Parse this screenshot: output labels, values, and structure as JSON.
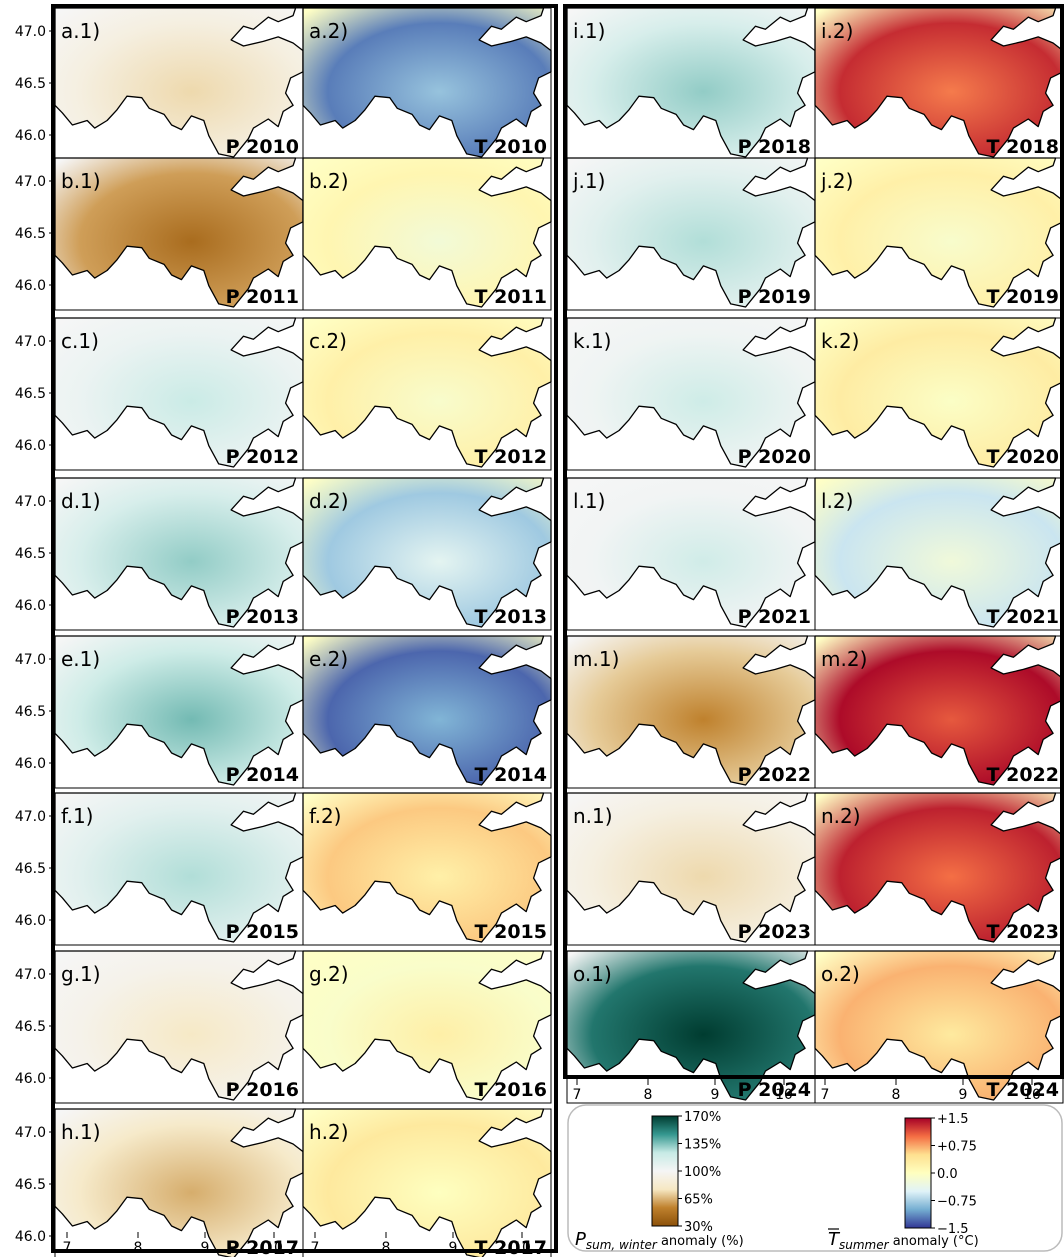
{
  "chart_data": {
    "type": "heatmap",
    "title": "",
    "xlabel": "",
    "ylabel": "",
    "x_ticks": [
      "7",
      "8",
      "9",
      "10"
    ],
    "y_ticks": [
      "47.0",
      "46.5",
      "46.0"
    ],
    "xlim": [
      6.85,
      10.6
    ],
    "ylim": [
      45.8,
      47.25
    ],
    "panels": [
      {
        "label": "a.1)",
        "tag": "P 2010",
        "variable": "P",
        "year": 2010,
        "anomaly": 90
      },
      {
        "label": "a.2)",
        "tag": "T 2010",
        "variable": "T",
        "year": 2010,
        "anomaly": -1.2
      },
      {
        "label": "b.1)",
        "tag": "P 2011",
        "variable": "P",
        "year": 2011,
        "anomaly": 60
      },
      {
        "label": "b.2)",
        "tag": "T 2011",
        "variable": "T",
        "year": 2011,
        "anomaly": 0.15
      },
      {
        "label": "c.1)",
        "tag": "P 2012",
        "variable": "P",
        "year": 2012,
        "anomaly": 105
      },
      {
        "label": "c.2)",
        "tag": "T 2012",
        "variable": "T",
        "year": 2012,
        "anomaly": 0.25
      },
      {
        "label": "d.1)",
        "tag": "P 2013",
        "variable": "P",
        "year": 2013,
        "anomaly": 115
      },
      {
        "label": "d.2)",
        "tag": "T 2013",
        "variable": "T",
        "year": 2013,
        "anomaly": -0.8
      },
      {
        "label": "e.1)",
        "tag": "P 2014",
        "variable": "P",
        "year": 2014,
        "anomaly": 120
      },
      {
        "label": "e.2)",
        "tag": "T 2014",
        "variable": "T",
        "year": 2014,
        "anomaly": -1.3
      },
      {
        "label": "f.1)",
        "tag": "P 2015",
        "variable": "P",
        "year": 2015,
        "anomaly": 110
      },
      {
        "label": "f.2)",
        "tag": "T 2015",
        "variable": "T",
        "year": 2015,
        "anomaly": 0.6
      },
      {
        "label": "g.1)",
        "tag": "P 2016",
        "variable": "P",
        "year": 2016,
        "anomaly": 95
      },
      {
        "label": "g.2)",
        "tag": "T 2016",
        "variable": "T",
        "year": 2016,
        "anomaly": -0.1
      },
      {
        "label": "h.1)",
        "tag": "P 2017",
        "variable": "P",
        "year": 2017,
        "anomaly": 80
      },
      {
        "label": "h.2)",
        "tag": "T 2017",
        "variable": "T",
        "year": 2017,
        "anomaly": 0.35
      },
      {
        "label": "i.1)",
        "tag": "P 2018",
        "variable": "P",
        "year": 2018,
        "anomaly": 115
      },
      {
        "label": "i.2)",
        "tag": "T 2018",
        "variable": "T",
        "year": 2018,
        "anomaly": 1.3
      },
      {
        "label": "j.1)",
        "tag": "P 2019",
        "variable": "P",
        "year": 2019,
        "anomaly": 110
      },
      {
        "label": "j.2)",
        "tag": "T 2019",
        "variable": "T",
        "year": 2019,
        "anomaly": 0.25
      },
      {
        "label": "k.1)",
        "tag": "P 2020",
        "variable": "P",
        "year": 2020,
        "anomaly": 103
      },
      {
        "label": "k.2)",
        "tag": "T 2020",
        "variable": "T",
        "year": 2020,
        "anomaly": 0.3
      },
      {
        "label": "l.1)",
        "tag": "P 2021",
        "variable": "P",
        "year": 2021,
        "anomaly": 102
      },
      {
        "label": "l.2)",
        "tag": "T 2021",
        "variable": "T",
        "year": 2021,
        "anomaly": -0.6
      },
      {
        "label": "m.1)",
        "tag": "P 2022",
        "variable": "P",
        "year": 2022,
        "anomaly": 70
      },
      {
        "label": "m.2)",
        "tag": "T 2022",
        "variable": "T",
        "year": 2022,
        "anomaly": 1.45
      },
      {
        "label": "n.1)",
        "tag": "P 2023",
        "variable": "P",
        "year": 2023,
        "anomaly": 90
      },
      {
        "label": "n.2)",
        "tag": "T 2023",
        "variable": "T",
        "year": 2023,
        "anomaly": 1.35
      },
      {
        "label": "o.1)",
        "tag": "P 2024",
        "variable": "P",
        "year": 2024,
        "anomaly": 155
      },
      {
        "label": "o.2)",
        "tag": "T 2024",
        "variable": "T",
        "year": 2024,
        "anomaly": 0.7
      }
    ],
    "colorbars": [
      {
        "variable": "P",
        "title_main": "P",
        "title_sub": "sum, winter",
        "title_rest": " anomaly (%)",
        "range": [
          30,
          170
        ],
        "ticks": [
          "170%",
          "135%",
          "100%",
          "65%",
          "30%"
        ],
        "colors": [
          "#003c30",
          "#35978f",
          "#c7eae5",
          "#f5f5f5",
          "#f6e8c3",
          "#bf812d",
          "#8c510a"
        ]
      },
      {
        "variable": "T",
        "title_main": "T",
        "title_sub": "summer",
        "title_rest": " anomaly (°C)",
        "range": [
          -1.5,
          1.5
        ],
        "ticks": [
          "+1.5",
          "+0.75",
          "0.0",
          "−0.75",
          "−1.5"
        ],
        "colors": [
          "#a50026",
          "#f46d43",
          "#fee090",
          "#ffffbf",
          "#e0f3f8",
          "#74add1",
          "#313695"
        ]
      }
    ]
  }
}
